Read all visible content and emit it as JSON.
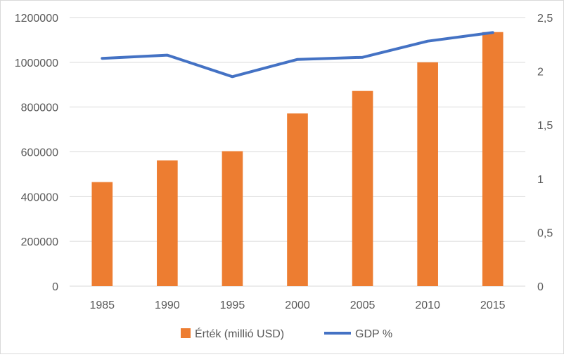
{
  "chart_data": {
    "type": "bar",
    "categories": [
      "1985",
      "1990",
      "1995",
      "2000",
      "2005",
      "2010",
      "2015"
    ],
    "series": [
      {
        "name": "Érték (millió USD)",
        "type": "bar",
        "axis": "left",
        "color": "#ED7D31",
        "values": [
          465000,
          562000,
          603000,
          772000,
          872000,
          1000000,
          1135000
        ]
      },
      {
        "name": "GDP %",
        "type": "line",
        "axis": "right",
        "color": "#4472C4",
        "values": [
          2.12,
          2.15,
          1.95,
          2.11,
          2.13,
          2.28,
          2.36
        ]
      }
    ],
    "y_left": {
      "ylim": [
        0,
        1200000
      ],
      "ticks": [
        "0",
        "200000",
        "400000",
        "600000",
        "800000",
        "1000000",
        "1200000"
      ]
    },
    "y_right": {
      "ylim": [
        0,
        2.5
      ],
      "ticks": [
        "0",
        "0,5",
        "1",
        "1,5",
        "2",
        "2,5"
      ]
    },
    "grid": true,
    "legend_position": "bottom",
    "gridline_color": "#d9d9d9",
    "axis_text_color": "#595959"
  }
}
